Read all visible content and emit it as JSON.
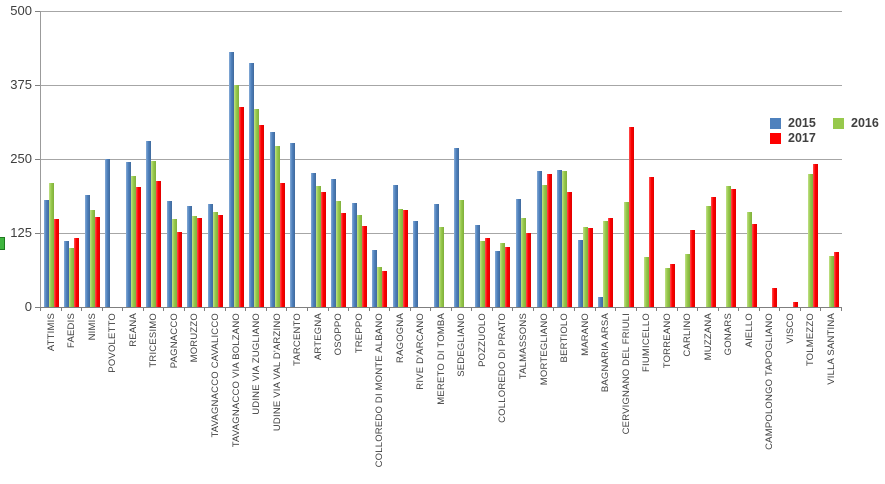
{
  "chart_data": {
    "type": "bar",
    "title": "",
    "xlabel": "",
    "ylabel": "",
    "ylim": [
      0,
      500
    ],
    "yticks": [
      0,
      125,
      250,
      375,
      500
    ],
    "grid": "horizontal",
    "legend_position": "top-right-inside",
    "categories": [
      "ATTIMIS",
      "FAEDIS",
      "NIMIS",
      "POVOLETTO",
      "REANA",
      "TRICESIMO",
      "PAGNACCO",
      "MORUZZO",
      "TAVAGNACCO CAVALICCO",
      "TAVAGNACCO VIA BOLZANO",
      "UDINE VIA ZUGLIANO",
      "UDINE VIA VAL D'ARZINO",
      "TARCENTO",
      "ARTEGNA",
      "OSOPPO",
      "TREPPO",
      "COLLOREDO DI MONTE ALBANO",
      "RAGOGNA",
      "RIVE D'ARCANO",
      "MERETO DI TOMBA",
      "SEDEGLIANO",
      "POZZUOLO",
      "COLLOREDO DI PRATO",
      "TALMASSONS",
      "MORTEGLIANO",
      "BERTIOLO",
      "MARANO",
      "BAGNARIA ARSA",
      "CERVIGNANO DEL FRIULI",
      "FIUMICELLO",
      "TORREANO",
      "CARLINO",
      "MUZZANA",
      "GONARS",
      "AIELLO",
      "CAMPOLONGO TAPOGLIANO",
      "VISCO",
      "TOLMEZZO",
      "VILLA SANTINA"
    ],
    "series": [
      {
        "name": "2015",
        "color": "#4E81BD",
        "values": [
          180,
          112,
          190,
          250,
          245,
          280,
          179,
          170,
          174,
          430,
          412,
          296,
          277,
          227,
          217,
          176,
          96,
          207,
          146,
          174,
          269,
          138,
          95,
          182,
          230,
          231,
          113,
          17,
          0,
          0,
          0,
          0,
          0,
          0,
          0,
          0,
          0,
          0,
          0
        ]
      },
      {
        "name": "2016",
        "color": "#97C94C",
        "values": [
          209,
          99,
          164,
          0,
          221,
          247,
          148,
          154,
          161,
          375,
          334,
          272,
          0,
          204,
          179,
          156,
          68,
          165,
          0,
          135,
          181,
          112,
          109,
          151,
          206,
          229,
          136,
          146,
          177,
          85,
          66,
          90,
          170,
          204,
          160,
          0,
          0,
          225,
          87
        ]
      },
      {
        "name": "2017",
        "color": "#FE0000",
        "values": [
          148,
          117,
          152,
          0,
          202,
          213,
          127,
          150,
          156,
          338,
          308,
          209,
          0,
          194,
          159,
          137,
          61,
          164,
          0,
          0,
          0,
          117,
          101,
          125,
          225,
          195,
          133,
          150,
          304,
          220,
          73,
          130,
          186,
          199,
          141,
          33,
          8,
          241,
          93
        ]
      }
    ]
  },
  "decorations": {
    "stray_left_edge_mark_color": "#3FB53F"
  }
}
